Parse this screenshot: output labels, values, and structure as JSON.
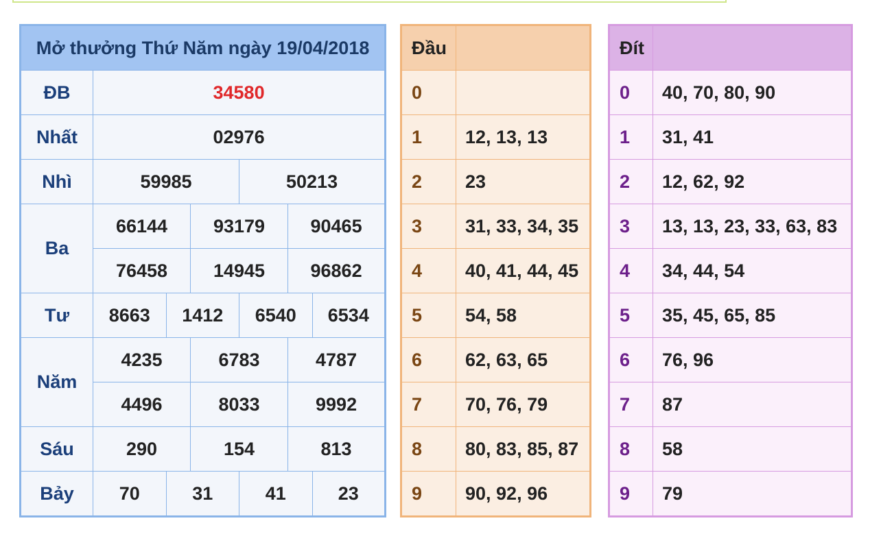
{
  "title": "Mở thưởng Thứ Năm ngày 19/04/2018",
  "prizes": {
    "db": {
      "label": "ĐB",
      "values": [
        "34580"
      ]
    },
    "nhat": {
      "label": "Nhất",
      "values": [
        "02976"
      ]
    },
    "nhi": {
      "label": "Nhì",
      "values": [
        "59985",
        "50213"
      ]
    },
    "ba": {
      "label": "Ba",
      "values": [
        "66144",
        "93179",
        "90465",
        "76458",
        "14945",
        "96862"
      ]
    },
    "tu": {
      "label": "Tư",
      "values": [
        "8663",
        "1412",
        "6540",
        "6534"
      ]
    },
    "nam": {
      "label": "Năm",
      "values": [
        "4235",
        "6783",
        "4787",
        "4496",
        "8033",
        "9992"
      ]
    },
    "sau": {
      "label": "Sáu",
      "values": [
        "290",
        "154",
        "813"
      ]
    },
    "bay": {
      "label": "Bảy",
      "values": [
        "70",
        "31",
        "41",
        "23"
      ]
    }
  },
  "dau": {
    "header": "Đầu",
    "rows": [
      {
        "digit": "0",
        "values": ""
      },
      {
        "digit": "1",
        "values": "12, 13, 13"
      },
      {
        "digit": "2",
        "values": "23"
      },
      {
        "digit": "3",
        "values": "31, 33, 34, 35"
      },
      {
        "digit": "4",
        "values": "40, 41, 44, 45"
      },
      {
        "digit": "5",
        "values": "54, 58"
      },
      {
        "digit": "6",
        "values": "62, 63, 65"
      },
      {
        "digit": "7",
        "values": "70, 76, 79"
      },
      {
        "digit": "8",
        "values": "80, 83, 85, 87"
      },
      {
        "digit": "9",
        "values": "90, 92, 96"
      }
    ]
  },
  "dit": {
    "header": "Đít",
    "rows": [
      {
        "digit": "0",
        "values": "40, 70, 80, 90"
      },
      {
        "digit": "1",
        "values": "31, 41"
      },
      {
        "digit": "2",
        "values": "12, 62, 92"
      },
      {
        "digit": "3",
        "values": "13, 13, 23, 33, 63, 83"
      },
      {
        "digit": "4",
        "values": "34, 44, 54"
      },
      {
        "digit": "5",
        "values": "35, 45, 65, 85"
      },
      {
        "digit": "6",
        "values": "76, 96"
      },
      {
        "digit": "7",
        "values": "87"
      },
      {
        "digit": "8",
        "values": "58"
      },
      {
        "digit": "9",
        "values": "79"
      }
    ]
  },
  "colors": {
    "special_prize": "#e0282a",
    "results_border": "#8ab4e8",
    "dau_border": "#f0b47a",
    "dit_border": "#d69be0"
  }
}
